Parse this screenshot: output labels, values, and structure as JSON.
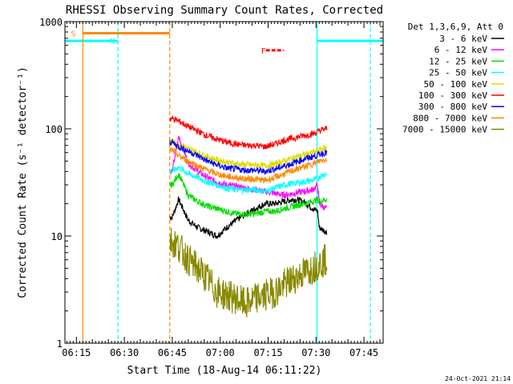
{
  "chart_data": {
    "type": "line",
    "title": "RHESSI Observing Summary Count Rates, Corrected",
    "xlabel": "Start Time (18-Aug-14 06:11:22)",
    "ylabel": "Corrected Count Rate (s⁻¹ detector⁻¹)",
    "x_tick_labels": [
      "06:15",
      "06:30",
      "06:45",
      "07:00",
      "07:15",
      "07:30",
      "07:45"
    ],
    "x_tick_minutes": [
      15,
      30,
      45,
      60,
      75,
      90,
      105
    ],
    "x_range_minutes": [
      11.4,
      111
    ],
    "y_scale": "log",
    "y_tick_labels": [
      "1",
      "10",
      "100",
      "1000"
    ],
    "ylim": [
      1,
      1000
    ],
    "legend_title": "Det 1,3,6,9, Att 0",
    "legend_position": "right",
    "timestamp": "24-Oct-2021 21:14",
    "data_window": [
      44.2,
      93.5
    ],
    "series": [
      {
        "name": "3 - 6 keV",
        "color": "#000000",
        "x": [
          45,
          47,
          50,
          53,
          56,
          59,
          62,
          65,
          68,
          71,
          74,
          77,
          80,
          83,
          86,
          89,
          90.5,
          91,
          93
        ],
        "y": [
          15,
          22,
          14,
          12,
          11,
          10,
          12,
          14,
          16,
          18,
          20,
          20,
          21,
          22,
          21,
          18,
          17,
          12,
          11
        ]
      },
      {
        "name": "6 - 12 keV",
        "color": "#ff00ff",
        "x": [
          45,
          47,
          50,
          53,
          56,
          59,
          62,
          65,
          68,
          71,
          74,
          77,
          80,
          83,
          86,
          89,
          90.5,
          91,
          93
        ],
        "y": [
          40,
          85,
          48,
          40,
          35,
          32,
          30,
          29,
          28,
          27,
          26,
          25,
          24,
          25,
          26,
          27,
          30,
          20,
          18
        ]
      },
      {
        "name": "12 - 25 keV",
        "color": "#00dd00",
        "x": [
          45,
          47,
          50,
          53,
          56,
          59,
          62,
          65,
          68,
          71,
          74,
          77,
          80,
          83,
          86,
          89,
          90.5,
          91,
          93
        ],
        "y": [
          30,
          38,
          24,
          21,
          19,
          18,
          17,
          16,
          16,
          16,
          17,
          17,
          18,
          19,
          20,
          21,
          22,
          21,
          22
        ]
      },
      {
        "name": "25 - 50 keV",
        "color": "#00ffff",
        "x": [
          45,
          47,
          50,
          53,
          56,
          59,
          62,
          65,
          68,
          71,
          74,
          77,
          80,
          83,
          86,
          89,
          90.5,
          91,
          93
        ],
        "y": [
          40,
          44,
          38,
          35,
          32,
          30,
          28,
          27,
          27,
          27,
          26,
          28,
          30,
          31,
          32,
          33,
          34,
          36,
          38
        ]
      },
      {
        "name": "50 - 100 keV",
        "color": "#dddd00",
        "x": [
          45,
          47,
          50,
          53,
          56,
          59,
          62,
          65,
          68,
          71,
          74,
          77,
          80,
          83,
          86,
          89,
          90.5,
          91,
          93
        ],
        "y": [
          75,
          72,
          66,
          60,
          55,
          51,
          49,
          47,
          46,
          46,
          45,
          47,
          50,
          54,
          57,
          60,
          62,
          64,
          66
        ]
      },
      {
        "name": "100 - 300 keV",
        "color": "#ff0000",
        "x": [
          45,
          47,
          50,
          53,
          56,
          59,
          62,
          65,
          68,
          71,
          74,
          77,
          80,
          83,
          86,
          89,
          90.5,
          91,
          93
        ],
        "y": [
          125,
          118,
          105,
          95,
          86,
          80,
          75,
          72,
          70,
          70,
          68,
          72,
          78,
          82,
          86,
          90,
          93,
          96,
          100
        ]
      },
      {
        "name": "300 - 800 keV",
        "color": "#0000ff",
        "x": [
          45,
          47,
          50,
          53,
          56,
          59,
          62,
          65,
          68,
          71,
          74,
          77,
          80,
          83,
          86,
          89,
          90.5,
          91,
          93
        ],
        "y": [
          75,
          68,
          62,
          56,
          50,
          46,
          43,
          42,
          41,
          41,
          40,
          42,
          45,
          48,
          52,
          55,
          57,
          58,
          60
        ]
      },
      {
        "name": "800 - 7000 keV",
        "color": "#ff8800",
        "x": [
          45,
          47,
          50,
          53,
          56,
          59,
          62,
          65,
          68,
          71,
          74,
          77,
          80,
          83,
          86,
          89,
          90.5,
          91,
          93
        ],
        "y": [
          63,
          56,
          50,
          45,
          41,
          38,
          36,
          35,
          34,
          34,
          33,
          35,
          38,
          41,
          44,
          47,
          49,
          50,
          52
        ]
      },
      {
        "name": "7000 - 15000 keV",
        "color": "#888800",
        "x": [
          45,
          47,
          50,
          53,
          56,
          59,
          62,
          65,
          68,
          71,
          74,
          77,
          80,
          83,
          86,
          89,
          90.5,
          91,
          93
        ],
        "y": [
          9,
          8,
          6,
          5,
          4,
          3,
          2.8,
          2.6,
          2.3,
          2.6,
          2.8,
          3.0,
          3.5,
          4.0,
          4.5,
          5.0,
          5.5,
          5.5,
          6.0
        ]
      }
    ],
    "flag_bars": [
      {
        "label": "S",
        "color": "#ff8800",
        "x0": 17,
        "x1": 44.2,
        "y": 780
      },
      {
        "label": "N",
        "color": "#00ffff",
        "x0": 11.4,
        "x1": 28,
        "y": 660
      },
      {
        "label": "",
        "color": "#00ffff",
        "x0": 90.3,
        "x1": 111,
        "y": 660
      },
      {
        "label": "F",
        "color": "#ff0000",
        "x0": 74.3,
        "x1": 79.8,
        "y": 540
      }
    ],
    "vertical_lines": [
      {
        "x": 17,
        "color": "#ff8800",
        "style": "solid"
      },
      {
        "x": 44.2,
        "color": "#ff8800",
        "style": "dashed"
      },
      {
        "x": 28,
        "color": "#00ffff",
        "style": "dashed"
      },
      {
        "x": 90.3,
        "color": "#00ffff",
        "style": "solid"
      },
      {
        "x": 107,
        "color": "#00ffff",
        "style": "dashed"
      }
    ]
  }
}
